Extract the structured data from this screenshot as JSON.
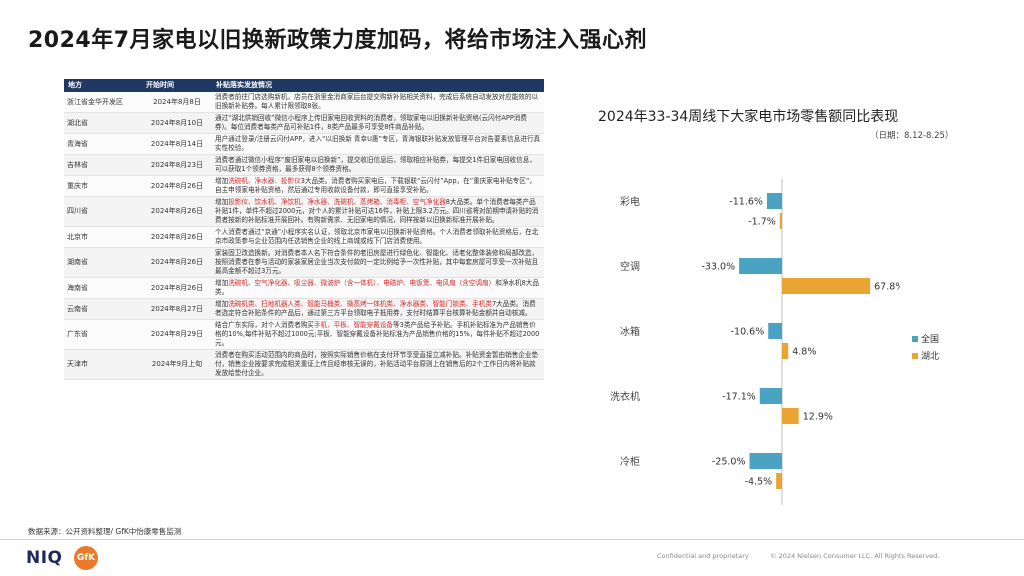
{
  "title": "2024年7月家电以旧换新政策力度加码，将给市场注入强心剂",
  "table": {
    "headers": [
      "地方",
      "开始时间",
      "补贴落实发放情况"
    ],
    "rows": [
      {
        "region": "浙江省金华开发区",
        "date": "2024年8月8日",
        "segments": [
          {
            "t": "消费者前往门店选购新机，店员在浙里金消商家后台提交购新补贴相关资料，完成后系统自动发放对应能效的以旧换新补贴券。每人累计限领取8张。",
            "r": false
          }
        ]
      },
      {
        "region": "湖北省",
        "date": "2024年8月10日",
        "segments": [
          {
            "t": "通过“湖北供销回收”微信小程序上传旧家电回收资料的消费者，领取家电以旧换新补贴资格(云闪付APP消费券)。每位消费者每类产品可补贴1件，8类产品最多可享受8件商品补贴。",
            "r": false
          }
        ]
      },
      {
        "region": "青海省",
        "date": "2024年8月14日",
        "segments": [
          {
            "t": "用户通过登录/注册云闪付APP，进入“以旧换新 青幸U惠”专区，青海银联补贴发放管理平台对告要素信息进行真实性校验。",
            "r": false
          }
        ]
      },
      {
        "region": "吉林省",
        "date": "2024年8月23日",
        "segments": [
          {
            "t": "消费者通过微信小程序“废旧家电以旧换新”，提交收旧信息后，领取相应补贴券，每提交1件旧家电回收信息，可以获取1个领券资格，最多获得8个领券资格。",
            "r": false
          }
        ]
      },
      {
        "region": "重庆市",
        "date": "2024年8月26日",
        "segments": [
          {
            "t": "增加",
            "r": false
          },
          {
            "t": "洗碗机、净水器、投影仪",
            "r": true
          },
          {
            "t": "3大品类。消费者购买家电后，下载银联“云闪付”App，在“重庆家电补贴专区”，自主申领家电补贴资格，然后通过专用收款设备付款，即可直接享受补贴。",
            "r": false
          }
        ]
      },
      {
        "region": "四川省",
        "date": "2024年8月26日",
        "segments": [
          {
            "t": "增加",
            "r": false
          },
          {
            "t": "投影仪、饮水机、净饮机、净水器、洗碗机、蒸烤箱、消毒柜、空气净化器",
            "r": true
          },
          {
            "t": "8大品类。单个消费者每类产品补贴1件，单件不超过2000元，对个人的累计补贴可达16件，补贴上限3.2万元。四川省将对前期申请补贴的消费者按新的补贴标准开展回补。有购新需求、无旧家电的情况，同样按新以旧换新标准开展补贴。",
            "r": false
          }
        ]
      },
      {
        "region": "北京市",
        "date": "2024年8月26日",
        "segments": [
          {
            "t": "个人消费者通过“京通”小程序实名认证，领取北京市家电以旧换新补贴资格。个人消费者领取补贴资格后，在北京市政策参与企业范围内任选销售企业的线上商城或线下门店消费使用。",
            "r": false
          }
        ]
      },
      {
        "region": "湖南省",
        "date": "2024年8月26日",
        "segments": [
          {
            "t": "家装固卫改造换新。对消费者本人名下符合条件的老旧房屋进行绿色化、智能化、适老化整体装修和局部改造，按照消费者在参与活动的家装家居企业当次支付款的一定比例给予一次性补贴，其中每套房屋可享受一次补贴且最高金额不超过3万元。",
            "r": false
          }
        ]
      },
      {
        "region": "海南省",
        "date": "2024年8月26日",
        "segments": [
          {
            "t": "增加",
            "r": false
          },
          {
            "t": "洗碗机、空气净化器、吸尘器、微波炉（含一体机）、电磁炉、电饭煲、电风扇（含空调扇）",
            "r": true
          },
          {
            "t": "和净水机8大品类。",
            "r": false
          }
        ]
      },
      {
        "region": "云南省",
        "date": "2024年8月27日",
        "segments": [
          {
            "t": "增加",
            "r": false
          },
          {
            "t": "洗碗机类、扫地机器人类、智能马桶类、微蒸烤一体机类、净水器类、智能门锁类、手机类",
            "r": true
          },
          {
            "t": "7大品类。消费者选定符合补贴条件的产品后，通过第三方平台领取电子抵用券，支付时结算平台核算补贴金额并自动核减。",
            "r": false
          }
        ]
      },
      {
        "region": "广东省",
        "date": "2024年8月29日",
        "segments": [
          {
            "t": "结合广东实际，对个人消费者购买",
            "r": false
          },
          {
            "t": "手机、平板、智能穿戴设备",
            "r": true
          },
          {
            "t": "等3类产品给予补贴。手机补贴标准为产品销售价格的10%,每件补贴不超过1000元;平板、智能穿戴设备补贴标准为产品销售价格的15%，每件补贴不超过2000元。",
            "r": false
          }
        ]
      },
      {
        "region": "天津市",
        "date": "2024年9月上旬",
        "segments": [
          {
            "t": "消费者在购买活动范围内的商品时，按照实际销售价格在支付环节享受直接立减补贴。补贴资金暂由销售企业垫付，销售企业按要求完成相关重证上传且经审核无误的，补贴活动平台原则上在销售后的2个工作日内将补贴款发放给垫付企业。",
            "r": false
          }
        ]
      }
    ]
  },
  "source_note": "数据来源：公开资料整理/ GfK中怡康零售监测",
  "chart_title": "2024年33-34周线下大家电市场零售额同比表现",
  "chart_subtitle": "（日期：8.12-8.25）",
  "chart_data": {
    "type": "bar",
    "orientation": "horizontal",
    "categories": [
      "彩电",
      "空调",
      "冰箱",
      "洗衣机",
      "冷柜"
    ],
    "series": [
      {
        "name": "全国",
        "values": [
          -11.6,
          -33.0,
          -10.6,
          -17.1,
          -25.0
        ],
        "color": "#4ba3c3"
      },
      {
        "name": "湖北",
        "values": [
          -1.7,
          67.8,
          4.8,
          12.9,
          -4.5
        ],
        "color": "#e8a534"
      }
    ],
    "value_labels": [
      [
        "-11.6%",
        "-1.7%"
      ],
      [
        "-33.0%",
        "67.8%"
      ],
      [
        "-10.6%",
        "4.8%"
      ],
      [
        "-17.1%",
        "12.9%"
      ],
      [
        "-25.0%",
        "-4.5%"
      ]
    ],
    "value_format": "percent",
    "legend_position": "right",
    "grid": false
  },
  "footer": {
    "logo_left": "NIQ",
    "logo_right": "GfK",
    "confidential": "Confidential and proprietary",
    "copyright": "© 2024 Nielsen Consumer LLC. All Rights Reserved."
  }
}
